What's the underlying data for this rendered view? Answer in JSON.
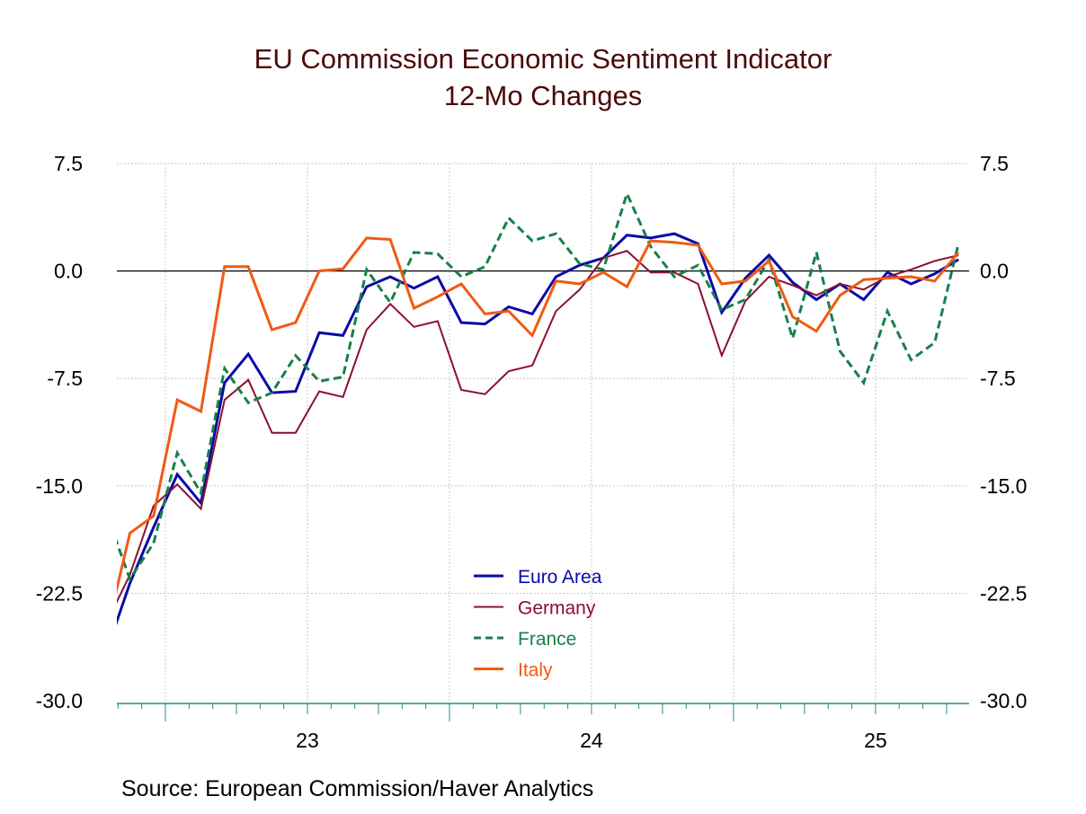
{
  "chart_data": {
    "type": "line",
    "title": "EU Commission Economic Sentiment Indicator",
    "subtitle": "12-Mo Changes",
    "source": "Source:  European Commission/Haver Analytics",
    "ylim": [
      -30,
      7.5
    ],
    "y_ticks": [
      "7.5",
      "0.0",
      "-7.5",
      "-15.0",
      "-22.5",
      "-30.0"
    ],
    "y_tick_values": [
      7.5,
      0,
      -7.5,
      -15,
      -22.5,
      -30
    ],
    "x_tick_labels": [
      "23",
      "24",
      "25"
    ],
    "frequency": "monthly",
    "grid": true,
    "legend_position": "bottom-center",
    "x": [
      "2022-10",
      "2022-11",
      "2022-12",
      "2023-01",
      "2023-02",
      "2023-03",
      "2023-04",
      "2023-05",
      "2023-06",
      "2023-07",
      "2023-08",
      "2023-09",
      "2023-10",
      "2023-11",
      "2023-12",
      "2024-01",
      "2024-02",
      "2024-03",
      "2024-04",
      "2024-05",
      "2024-06",
      "2024-07",
      "2024-08",
      "2024-09",
      "2024-10",
      "2024-11",
      "2024-12",
      "2025-01",
      "2025-02",
      "2025-03",
      "2025-04",
      "2025-05",
      "2025-06",
      "2025-07",
      "2025-08",
      "2025-09",
      "2025-10"
    ],
    "series": [
      {
        "name": "Euro Area",
        "color": "#0a0aa8",
        "dash": false,
        "values": [
          -26.6,
          -21.8,
          -17.9,
          -14.2,
          -16.2,
          -7.8,
          -5.8,
          -8.5,
          -8.4,
          -4.3,
          -4.5,
          -1.1,
          -0.4,
          -1.2,
          -0.4,
          -3.6,
          -3.7,
          -2.5,
          -3.0,
          -0.4,
          0.4,
          0.9,
          2.5,
          2.3,
          2.6,
          1.9,
          -2.9,
          -0.5,
          1.1,
          -0.8,
          -2.0,
          -0.9,
          -2.0,
          -0.1,
          -0.9,
          -0.2,
          0.8
        ]
      },
      {
        "name": "Germany",
        "color": "#8b1030",
        "dash": false,
        "values": [
          -24.6,
          -21.2,
          -16.4,
          -14.9,
          -16.6,
          -9.0,
          -7.6,
          -11.3,
          -11.3,
          -8.4,
          -8.8,
          -4.1,
          -2.3,
          -3.9,
          -3.5,
          -8.3,
          -8.6,
          -7.0,
          -6.6,
          -2.8,
          -1.3,
          0.9,
          1.4,
          -0.1,
          -0.1,
          -0.9,
          -5.9,
          -2.1,
          -0.4,
          -1.0,
          -1.7,
          -0.9,
          -1.3,
          -0.4,
          0.1,
          0.7,
          1.1
        ]
      },
      {
        "name": "France",
        "color": "#17804a",
        "dash": true,
        "values": [
          -16.9,
          -21.5,
          -19.0,
          -12.7,
          -15.5,
          -6.8,
          -9.2,
          -8.5,
          -5.9,
          -7.7,
          -7.4,
          0.1,
          -2.2,
          1.3,
          1.2,
          -0.4,
          0.3,
          3.7,
          2.1,
          2.6,
          0.5,
          0.1,
          5.4,
          1.7,
          -0.4,
          0.4,
          -2.7,
          -2.0,
          0.8,
          -4.7,
          1.3,
          -5.6,
          -7.8,
          -2.8,
          -6.2,
          -5.0,
          1.9
        ]
      },
      {
        "name": "Italy",
        "color": "#f05a14",
        "dash": false,
        "values": [
          -25.3,
          -18.3,
          -17.1,
          -9.0,
          -9.8,
          0.3,
          0.3,
          -4.1,
          -3.6,
          0.0,
          0.15,
          2.3,
          2.2,
          -2.6,
          -1.8,
          -0.9,
          -3.0,
          -2.8,
          -4.5,
          -0.7,
          -0.9,
          -0.1,
          -1.1,
          2.1,
          2.0,
          1.8,
          -0.9,
          -0.7,
          0.7,
          -3.2,
          -4.2,
          -1.7,
          -0.6,
          -0.5,
          -0.4,
          -0.7,
          1.3
        ]
      }
    ],
    "axis_color": "#2a8a8a",
    "title_color": "#4a0a0a"
  }
}
